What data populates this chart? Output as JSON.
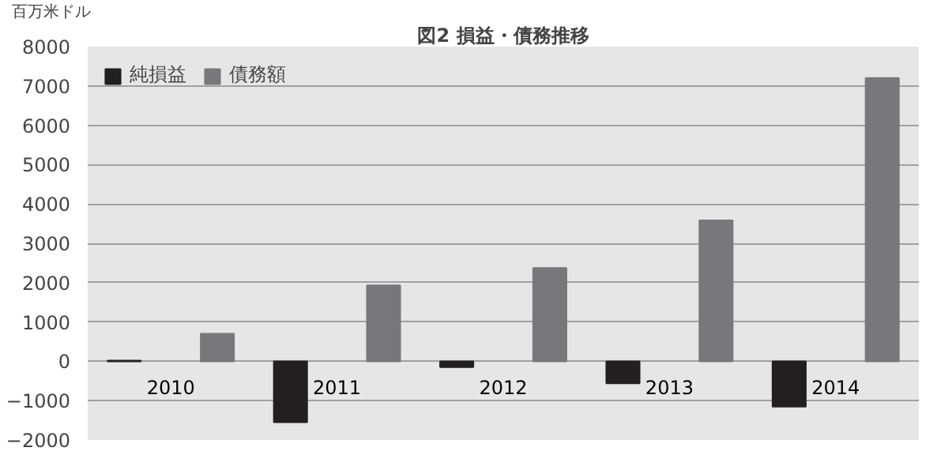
{
  "chart_data": {
    "type": "bar",
    "title": "図2 損益・債務推移",
    "ylabel": "百万米ドル",
    "categories": [
      "2010",
      "2011",
      "2012",
      "2013",
      "2014"
    ],
    "series": [
      {
        "name": "純損益",
        "color": "#231f20",
        "values": [
          20,
          -1550,
          -150,
          -560,
          -1150
        ]
      },
      {
        "name": "債務額",
        "color": "#77787b",
        "values": [
          700,
          1930,
          2370,
          3580,
          7200
        ]
      }
    ],
    "ylim": [
      -2000,
      8000
    ],
    "yticks": [
      -2000,
      -1000,
      0,
      1000,
      2000,
      3000,
      4000,
      5000,
      6000,
      7000,
      8000
    ],
    "grid": "y",
    "legend": "top left"
  }
}
